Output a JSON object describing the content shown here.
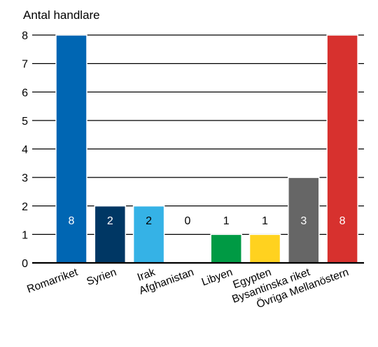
{
  "chart_data": {
    "type": "bar",
    "ylabel": "Antal handlare",
    "categories": [
      "Romarriket",
      "Syrien",
      "Irak",
      "Afghanistan",
      "Libyen",
      "Egypten",
      "Bysantinska riket",
      "Övriga Mellanöstern"
    ],
    "values": [
      8,
      2,
      2,
      0,
      1,
      1,
      3,
      8
    ],
    "colors": [
      "#0066b3",
      "#003764",
      "#35b2e6",
      "#ffffff",
      "#009a44",
      "#ffd21f",
      "#666666",
      "#d7312e"
    ],
    "label_colors": [
      "#ffffff",
      "#ffffff",
      "#000000",
      "#000000",
      "#000000",
      "#000000",
      "#ffffff",
      "#ffffff"
    ],
    "ylim": [
      0,
      8
    ],
    "yticks": [
      0,
      1,
      2,
      3,
      4,
      5,
      6,
      7,
      8
    ],
    "grid": true,
    "legend": "none"
  }
}
